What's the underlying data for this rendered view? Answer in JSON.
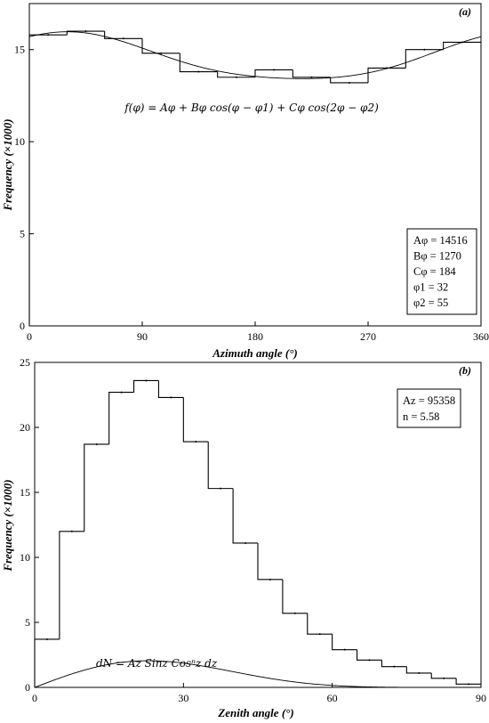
{
  "chart_data": [
    {
      "type": "histogram+line",
      "panel_label": "(a)",
      "xlabel": "Azimuth angle (°)",
      "ylabel": "Frequency (×1000)",
      "xlim": [
        0,
        360
      ],
      "ylim": [
        0,
        17.5
      ],
      "xticks": [
        "0",
        "90",
        "180",
        "270",
        "360"
      ],
      "yticks": [
        "0",
        "5",
        "10",
        "15"
      ],
      "xtick_values": [
        0,
        90,
        180,
        270,
        360
      ],
      "ytick_values": [
        0,
        5,
        10,
        15
      ],
      "formula": "f(φ) = Aφ + Bφ cos(φ − φ1) + Cφ cos(2φ − φ2)",
      "params": [
        "Aφ = 14516",
        "Bφ = 1270",
        "Cφ = 184",
        "φ1 = 32",
        "φ2 = 55"
      ],
      "fit": {
        "A": 14.516,
        "B": 1.27,
        "C": 0.184,
        "phi1": 32,
        "phi2": 55
      },
      "bin_width": 30,
      "bins": [
        0,
        30,
        60,
        90,
        120,
        150,
        180,
        210,
        240,
        270,
        300,
        330
      ],
      "values": [
        15.8,
        16.0,
        15.6,
        14.8,
        13.8,
        13.5,
        13.9,
        13.5,
        13.2,
        14.0,
        15.0,
        15.4
      ]
    },
    {
      "type": "histogram+line",
      "panel_label": "(b)",
      "xlabel": "Zenith angle (°)",
      "ylabel": "Frequency (×1000)",
      "xlim": [
        0,
        90
      ],
      "ylim": [
        0,
        25
      ],
      "xticks": [
        "0",
        "30",
        "60",
        "90"
      ],
      "yticks": [
        "0",
        "5",
        "10",
        "15",
        "20",
        "25"
      ],
      "xtick_values": [
        0,
        30,
        60,
        90
      ],
      "ytick_values": [
        0,
        5,
        10,
        15,
        20,
        25
      ],
      "formula": "dN = Az Sinz Cosⁿz dz",
      "params": [
        "Az = 95358",
        "n = 5.58"
      ],
      "fit": {
        "Az": 95.358,
        "n": 5.58
      },
      "bin_width": 5,
      "bins": [
        0,
        5,
        10,
        15,
        20,
        25,
        30,
        35,
        40,
        45,
        50,
        55,
        60,
        65,
        70,
        75,
        80,
        85
      ],
      "values": [
        3.7,
        12.0,
        18.7,
        22.7,
        23.6,
        22.3,
        18.9,
        15.3,
        11.1,
        8.3,
        5.7,
        4.1,
        2.9,
        2.1,
        1.6,
        1.1,
        0.7,
        0.25
      ]
    }
  ]
}
